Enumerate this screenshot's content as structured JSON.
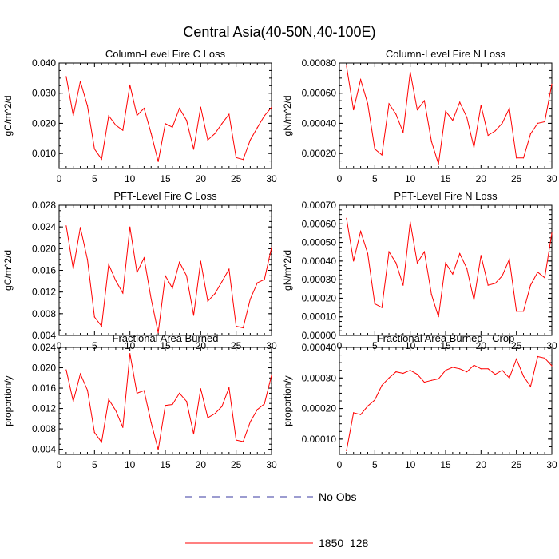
{
  "figure": {
    "title": "Central Asia(40-50N,40-100E)",
    "legend": [
      {
        "label": "No Obs",
        "color": "#3a3aa0",
        "style": "dashed"
      },
      {
        "label": "1850_128",
        "color": "#ff0000",
        "style": "solid"
      }
    ]
  },
  "chart_data": [
    {
      "type": "line",
      "title": "Column-Level Fire C Loss",
      "ylabel": "gC/m^2/d",
      "xlim": [
        0,
        30
      ],
      "ylim": [
        0.005,
        0.04
      ],
      "xticks": [
        0,
        5,
        10,
        15,
        20,
        25,
        30
      ],
      "xtick_labels": [
        "0",
        "5",
        "10",
        "15",
        "20",
        "25",
        "30"
      ],
      "yticks": [
        0.01,
        0.02,
        0.03,
        0.04
      ],
      "ytick_labels": [
        "0.010",
        "0.020",
        "0.030",
        "0.040"
      ],
      "series": [
        {
          "color": "#ff0000",
          "x": [
            1,
            2,
            3,
            4,
            5,
            6,
            7,
            8,
            9,
            10,
            11,
            12,
            13,
            14,
            15,
            16,
            17,
            18,
            19,
            20,
            21,
            22,
            23,
            24,
            25,
            26,
            27,
            28,
            29,
            30
          ],
          "y": [
            0.0355,
            0.0226,
            0.0339,
            0.0258,
            0.0115,
            0.0081,
            0.0225,
            0.0194,
            0.0177,
            0.0327,
            0.0226,
            0.025,
            0.0166,
            0.0073,
            0.0199,
            0.0187,
            0.025,
            0.021,
            0.0114,
            0.0254,
            0.0145,
            0.0166,
            0.0199,
            0.023,
            0.0086,
            0.008,
            0.0145,
            0.0186,
            0.0225,
            0.0253
          ]
        }
      ]
    },
    {
      "type": "line",
      "title": "Column-Level Fire N Loss",
      "ylabel": "gN/m^2/d",
      "xlim": [
        0,
        30
      ],
      "ylim": [
        0.0001,
        0.0008
      ],
      "xticks": [
        0,
        5,
        10,
        15,
        20,
        25,
        30
      ],
      "xtick_labels": [
        "0",
        "5",
        "10",
        "15",
        "20",
        "25",
        "30"
      ],
      "yticks": [
        0.0002,
        0.0004,
        0.0006,
        0.0008
      ],
      "ytick_labels": [
        "0.00020",
        "0.00040",
        "0.00060",
        "0.00080"
      ],
      "series": [
        {
          "color": "#ff0000",
          "x": [
            1,
            2,
            3,
            4,
            5,
            6,
            7,
            8,
            9,
            10,
            11,
            12,
            13,
            14,
            15,
            16,
            17,
            18,
            19,
            20,
            21,
            22,
            23,
            24,
            25,
            26,
            27,
            28,
            29,
            30
          ],
          "y": [
            0.00078,
            0.00049,
            0.00069,
            0.00053,
            0.00023,
            0.00019,
            0.00053,
            0.00046,
            0.00034,
            0.00074,
            0.00049,
            0.00055,
            0.00028,
            0.00013,
            0.00048,
            0.00042,
            0.00054,
            0.00044,
            0.00024,
            0.00052,
            0.00032,
            0.00035,
            0.0004,
            0.0005,
            0.00017,
            0.00017,
            0.00033,
            0.0004,
            0.00041,
            0.00066
          ]
        }
      ]
    },
    {
      "type": "line",
      "title": "PFT-Level Fire C Loss",
      "ylabel": "gC/m^2/d",
      "xlim": [
        0,
        30
      ],
      "ylim": [
        0.004,
        0.028
      ],
      "xticks": [
        0,
        5,
        10,
        15,
        20,
        25,
        30
      ],
      "xtick_labels": [
        "0",
        "5",
        "10",
        "15",
        "20",
        "25",
        "30"
      ],
      "yticks": [
        0.004,
        0.008,
        0.012,
        0.016,
        0.02,
        0.024,
        0.028
      ],
      "ytick_labels": [
        "0.004",
        "0.008",
        "0.012",
        "0.016",
        "0.020",
        "0.024",
        "0.028"
      ],
      "series": [
        {
          "color": "#ff0000",
          "x": [
            1,
            2,
            3,
            4,
            5,
            6,
            7,
            8,
            9,
            10,
            11,
            12,
            13,
            14,
            15,
            16,
            17,
            18,
            19,
            20,
            21,
            22,
            23,
            24,
            25,
            26,
            27,
            28,
            29,
            30
          ],
          "y": [
            0.0242,
            0.0163,
            0.0239,
            0.018,
            0.0074,
            0.0057,
            0.0171,
            0.0141,
            0.0118,
            0.024,
            0.0156,
            0.0183,
            0.0107,
            0.0045,
            0.015,
            0.0127,
            0.0175,
            0.015,
            0.0077,
            0.0177,
            0.0103,
            0.0117,
            0.0139,
            0.0162,
            0.0057,
            0.0054,
            0.0107,
            0.0137,
            0.0143,
            0.0202
          ]
        }
      ]
    },
    {
      "type": "line",
      "title": "PFT-Level Fire N Loss",
      "ylabel": "gN/m^2/d",
      "xlim": [
        0,
        30
      ],
      "ylim": [
        0,
        0.0007
      ],
      "xticks": [
        0,
        5,
        10,
        15,
        20,
        25,
        30
      ],
      "xtick_labels": [
        "0",
        "5",
        "10",
        "15",
        "20",
        "25",
        "30"
      ],
      "yticks": [
        0,
        0.0001,
        0.0002,
        0.0003,
        0.0004,
        0.0005,
        0.0006,
        0.0007
      ],
      "ytick_labels": [
        "0.00000",
        "0.00010",
        "0.00020",
        "0.00030",
        "0.00040",
        "0.00050",
        "0.00060",
        "0.00070"
      ],
      "series": [
        {
          "color": "#ff0000",
          "x": [
            1,
            2,
            3,
            4,
            5,
            6,
            7,
            8,
            9,
            10,
            11,
            12,
            13,
            14,
            15,
            16,
            17,
            18,
            19,
            20,
            21,
            22,
            23,
            24,
            25,
            26,
            27,
            28,
            29,
            30
          ],
          "y": [
            0.00063,
            0.0004,
            0.00056,
            0.00044,
            0.00017,
            0.00015,
            0.00045,
            0.00039,
            0.00027,
            0.00061,
            0.00039,
            0.00045,
            0.00022,
            0.0001,
            0.00039,
            0.00033,
            0.00044,
            0.00036,
            0.00019,
            0.00043,
            0.00027,
            0.00028,
            0.00032,
            0.00041,
            0.00013,
            0.00013,
            0.00027,
            0.00034,
            0.00031,
            0.00055
          ]
        }
      ]
    },
    {
      "type": "line",
      "title": "Fractional Area Burned",
      "ylabel": "proportion/y",
      "xlim": [
        0,
        30
      ],
      "ylim": [
        0.003,
        0.024
      ],
      "xticks": [
        0,
        5,
        10,
        15,
        20,
        25,
        30
      ],
      "xtick_labels": [
        "0",
        "5",
        "10",
        "15",
        "20",
        "25",
        "30"
      ],
      "yticks": [
        0.004,
        0.008,
        0.012,
        0.016,
        0.02,
        0.024
      ],
      "ytick_labels": [
        "0.004",
        "0.008",
        "0.012",
        "0.016",
        "0.020",
        "0.024"
      ],
      "series": [
        {
          "color": "#ff0000",
          "x": [
            1,
            2,
            3,
            4,
            5,
            6,
            7,
            8,
            9,
            10,
            11,
            12,
            13,
            14,
            15,
            16,
            17,
            18,
            19,
            20,
            21,
            22,
            23,
            24,
            25,
            26,
            27,
            28,
            29,
            30
          ],
          "y": [
            0.0196,
            0.0134,
            0.0188,
            0.0156,
            0.0073,
            0.0054,
            0.0138,
            0.0116,
            0.0083,
            0.0228,
            0.015,
            0.0155,
            0.0092,
            0.0039,
            0.0126,
            0.0128,
            0.015,
            0.0134,
            0.007,
            0.0159,
            0.0102,
            0.011,
            0.0124,
            0.0161,
            0.0058,
            0.0055,
            0.0094,
            0.0118,
            0.0129,
            0.0185
          ]
        }
      ]
    },
    {
      "type": "line",
      "title": "Fractional Area Burned - Crop",
      "ylabel": "proportion/y",
      "xlim": [
        0,
        30
      ],
      "ylim": [
        5e-05,
        0.0004
      ],
      "xticks": [
        0,
        5,
        10,
        15,
        20,
        25,
        30
      ],
      "xtick_labels": [
        "0",
        "5",
        "10",
        "15",
        "20",
        "25",
        "30"
      ],
      "yticks": [
        0.0001,
        0.0002,
        0.0003,
        0.0004
      ],
      "ytick_labels": [
        "0.00010",
        "0.00020",
        "0.00030",
        "0.00040"
      ],
      "series": [
        {
          "color": "#ff0000",
          "x": [
            1,
            2,
            3,
            4,
            5,
            6,
            7,
            8,
            9,
            10,
            11,
            12,
            13,
            14,
            15,
            16,
            17,
            18,
            19,
            20,
            21,
            22,
            23,
            24,
            25,
            26,
            27,
            28,
            29,
            30
          ],
          "y": [
            6.2e-05,
            0.000186,
            0.00018,
            0.000208,
            0.000228,
            0.000276,
            0.0003,
            0.00032,
            0.000315,
            0.000325,
            0.000312,
            0.000286,
            0.000292,
            0.000297,
            0.000325,
            0.000335,
            0.00033,
            0.00032,
            0.000342,
            0.00033,
            0.00033,
            0.000312,
            0.000325,
            0.0003,
            0.000362,
            0.000306,
            0.000272,
            0.00037,
            0.000365,
            0.00034
          ]
        }
      ]
    }
  ]
}
